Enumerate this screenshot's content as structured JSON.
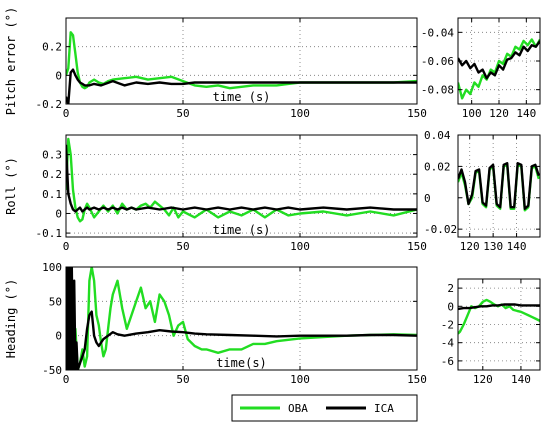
{
  "colors": {
    "OBA": "#22dd22",
    "ICA": "#000000"
  },
  "legend": {
    "entries": [
      "OBA",
      "ICA"
    ],
    "placement": "bottom-center"
  },
  "chart_data": [
    {
      "id": "pitch-main",
      "type": "line",
      "xlabel": "time (s)",
      "ylabel": "Pitch error (°)",
      "xlim": [
        0,
        150
      ],
      "ylim": [
        -0.2,
        0.4
      ],
      "xticks": [
        0,
        50,
        100,
        150
      ],
      "xtick_labels": [
        "0",
        "50",
        "100",
        "150"
      ],
      "yticks": [
        0.2,
        0,
        -0.2
      ],
      "ytick_labels": [
        "0.2",
        "0",
        "-0.2"
      ],
      "grid": true,
      "ytick_side": "left",
      "series": [
        {
          "name": "OBA",
          "x": [
            0,
            1,
            2,
            3,
            4,
            5,
            6,
            7,
            8,
            9,
            10,
            12,
            14,
            16,
            18,
            20,
            25,
            30,
            35,
            40,
            45,
            50,
            55,
            60,
            65,
            70,
            75,
            80,
            85,
            90,
            95,
            100,
            110,
            120,
            130,
            140,
            150
          ],
          "y": [
            0,
            0.05,
            0.3,
            0.28,
            0.15,
            0.02,
            -0.05,
            -0.08,
            -0.09,
            -0.08,
            -0.05,
            -0.03,
            -0.05,
            -0.06,
            -0.04,
            -0.03,
            -0.02,
            -0.01,
            -0.03,
            -0.02,
            -0.01,
            -0.04,
            -0.07,
            -0.08,
            -0.07,
            -0.09,
            -0.08,
            -0.07,
            -0.07,
            -0.07,
            -0.06,
            -0.05,
            -0.05,
            -0.05,
            -0.05,
            -0.05,
            -0.04
          ]
        },
        {
          "name": "ICA",
          "x": [
            0,
            1,
            2,
            3,
            4,
            5,
            6,
            7,
            8,
            10,
            12,
            15,
            20,
            25,
            30,
            35,
            40,
            45,
            50,
            55,
            60,
            70,
            80,
            90,
            100,
            110,
            120,
            130,
            140,
            150
          ],
          "y": [
            -0.15,
            -0.2,
            0.02,
            0.04,
            0.0,
            -0.03,
            -0.05,
            -0.06,
            -0.07,
            -0.07,
            -0.06,
            -0.07,
            -0.04,
            -0.07,
            -0.05,
            -0.06,
            -0.05,
            -0.06,
            -0.06,
            -0.05,
            -0.05,
            -0.05,
            -0.05,
            -0.05,
            -0.05,
            -0.05,
            -0.05,
            -0.05,
            -0.05,
            -0.05
          ]
        }
      ]
    },
    {
      "id": "pitch-zoom",
      "type": "line",
      "xlim": [
        90,
        150
      ],
      "ylim": [
        -0.09,
        -0.03
      ],
      "xticks": [
        100,
        120,
        140
      ],
      "xtick_labels": [
        "100",
        "120",
        "140"
      ],
      "yticks": [
        -0.04,
        -0.06,
        -0.08
      ],
      "ytick_labels": [
        "-0.04",
        "-0.06",
        "-0.08"
      ],
      "grid": true,
      "ytick_side": "left",
      "series": [
        {
          "name": "OBA",
          "x": [
            90,
            93,
            96,
            99,
            102,
            105,
            108,
            111,
            114,
            117,
            120,
            123,
            126,
            129,
            132,
            135,
            138,
            141,
            144,
            147,
            150
          ],
          "y": [
            -0.075,
            -0.086,
            -0.08,
            -0.083,
            -0.075,
            -0.078,
            -0.07,
            -0.073,
            -0.066,
            -0.068,
            -0.06,
            -0.062,
            -0.055,
            -0.057,
            -0.05,
            -0.052,
            -0.046,
            -0.049,
            -0.045,
            -0.05,
            -0.045
          ]
        },
        {
          "name": "ICA",
          "x": [
            90,
            93,
            96,
            99,
            102,
            105,
            108,
            111,
            114,
            117,
            120,
            123,
            126,
            129,
            132,
            135,
            138,
            141,
            144,
            147,
            150
          ],
          "y": [
            -0.058,
            -0.063,
            -0.06,
            -0.065,
            -0.062,
            -0.068,
            -0.066,
            -0.072,
            -0.068,
            -0.07,
            -0.063,
            -0.066,
            -0.059,
            -0.058,
            -0.054,
            -0.056,
            -0.05,
            -0.053,
            -0.049,
            -0.05,
            -0.046
          ]
        }
      ]
    },
    {
      "id": "roll-main",
      "type": "line",
      "xlabel": "time (s)",
      "ylabel": "Roll (°)",
      "xlim": [
        0,
        150
      ],
      "ylim": [
        -0.12,
        0.4
      ],
      "xticks": [
        0,
        50,
        100,
        150
      ],
      "xtick_labels": [
        "0",
        "50",
        "100",
        "150"
      ],
      "yticks": [
        0.3,
        0.2,
        0.1,
        0,
        -0.1
      ],
      "ytick_labels": [
        "0.3",
        "0.2",
        "0.1",
        "0",
        "-0.1"
      ],
      "grid": true,
      "ytick_side": "left",
      "series": [
        {
          "name": "OBA",
          "x": [
            0,
            1,
            2,
            3,
            4,
            5,
            6,
            7,
            8,
            9,
            10,
            12,
            14,
            16,
            18,
            20,
            22,
            24,
            26,
            28,
            30,
            32,
            34,
            36,
            38,
            40,
            42,
            44,
            46,
            48,
            50,
            55,
            60,
            65,
            70,
            75,
            80,
            85,
            90,
            95,
            100,
            110,
            120,
            130,
            140,
            150
          ],
          "y": [
            0.12,
            0.38,
            0.3,
            0.12,
            0.03,
            -0.02,
            -0.04,
            -0.03,
            0.02,
            0.05,
            0.03,
            -0.02,
            0.01,
            0.04,
            0.01,
            0.04,
            0.0,
            0.05,
            0.02,
            0.03,
            0.02,
            0.04,
            0.05,
            0.03,
            0.06,
            0.04,
            0.02,
            -0.01,
            0.03,
            -0.02,
            0.01,
            -0.02,
            0.02,
            -0.02,
            0.01,
            -0.01,
            0.02,
            -0.02,
            0.02,
            -0.01,
            0.0,
            0.01,
            -0.01,
            0.01,
            -0.01,
            0.02
          ]
        },
        {
          "name": "ICA",
          "x": [
            0,
            1,
            2,
            3,
            4,
            5,
            6,
            7,
            8,
            9,
            10,
            12,
            14,
            16,
            18,
            20,
            22,
            24,
            26,
            28,
            30,
            35,
            40,
            45,
            50,
            55,
            60,
            65,
            70,
            75,
            80,
            85,
            90,
            95,
            100,
            110,
            120,
            130,
            140,
            150
          ],
          "y": [
            0.35,
            0.1,
            0.05,
            0.02,
            0.01,
            0.02,
            0.03,
            0.01,
            0.02,
            0.03,
            0.02,
            0.03,
            0.02,
            0.03,
            0.02,
            0.03,
            0.02,
            0.03,
            0.02,
            0.03,
            0.02,
            0.03,
            0.02,
            0.03,
            0.02,
            0.03,
            0.02,
            0.03,
            0.02,
            0.03,
            0.02,
            0.03,
            0.02,
            0.03,
            0.02,
            0.03,
            0.02,
            0.03,
            0.02,
            0.02
          ]
        }
      ]
    },
    {
      "id": "roll-zoom",
      "type": "line",
      "xlim": [
        115,
        150
      ],
      "ylim": [
        -0.025,
        0.04
      ],
      "xticks": [
        120,
        130,
        140
      ],
      "xtick_labels": [
        "120",
        "130",
        "140"
      ],
      "yticks": [
        0.04,
        0.02,
        0,
        -0.02
      ],
      "ytick_labels": [
        "0.04",
        "0.02",
        "0",
        "-0.02"
      ],
      "grid": true,
      "ytick_side": "right",
      "series": [
        {
          "name": "OBA",
          "x": [
            115,
            116.5,
            118,
            119.5,
            121,
            122.5,
            124,
            125.5,
            127,
            128.5,
            130,
            131.5,
            133,
            134.5,
            136,
            137.5,
            139,
            140.5,
            142,
            143.5,
            145,
            146.5,
            148,
            149.5
          ],
          "y": [
            0.01,
            0.016,
            0.008,
            -0.004,
            0.0,
            0.016,
            0.017,
            -0.004,
            -0.006,
            0.018,
            0.02,
            -0.005,
            -0.007,
            0.02,
            0.021,
            -0.007,
            -0.007,
            0.021,
            0.02,
            -0.008,
            -0.006,
            0.019,
            0.02,
            0.012
          ]
        },
        {
          "name": "ICA",
          "x": [
            115,
            116.5,
            118,
            119.5,
            121,
            122.5,
            124,
            125.5,
            127,
            128.5,
            130,
            131.5,
            133,
            134.5,
            136,
            137.5,
            139,
            140.5,
            142,
            143.5,
            145,
            146.5,
            148,
            149.5
          ],
          "y": [
            0.012,
            0.018,
            0.01,
            -0.004,
            0.002,
            0.017,
            0.018,
            -0.003,
            -0.005,
            0.019,
            0.021,
            -0.004,
            -0.006,
            0.021,
            0.022,
            -0.006,
            -0.006,
            0.022,
            0.021,
            -0.007,
            -0.005,
            0.02,
            0.021,
            0.014
          ]
        }
      ]
    },
    {
      "id": "heading-main",
      "type": "line",
      "xlabel": "time(s)",
      "ylabel": "Heading (°)",
      "xlim": [
        0,
        150
      ],
      "ylim": [
        -50,
        100
      ],
      "xticks": [
        0,
        50,
        100,
        150
      ],
      "xtick_labels": [
        "0",
        "50",
        "100",
        "150"
      ],
      "yticks": [
        100,
        50,
        0,
        -50
      ],
      "ytick_labels": [
        "100",
        "50",
        "0",
        "-50"
      ],
      "grid": true,
      "ytick_side": "left",
      "series": [
        {
          "name": "OBA",
          "x": [
            0,
            0.5,
            1,
            1.5,
            2,
            2.5,
            3,
            3.5,
            4,
            5,
            6,
            7,
            8,
            9,
            10,
            11,
            12,
            13,
            14,
            15,
            16,
            17,
            18,
            19,
            20,
            22,
            24,
            26,
            28,
            30,
            32,
            34,
            36,
            38,
            40,
            42,
            44,
            46,
            48,
            50,
            52,
            55,
            58,
            60,
            65,
            70,
            75,
            80,
            85,
            90,
            95,
            100,
            110,
            120,
            130,
            140,
            150
          ],
          "y": [
            100,
            -50,
            100,
            -50,
            100,
            -50,
            -50,
            -20,
            10,
            -50,
            -40,
            -20,
            -45,
            -30,
            80,
            100,
            80,
            30,
            15,
            -10,
            -30,
            -20,
            10,
            40,
            60,
            80,
            40,
            10,
            30,
            50,
            70,
            40,
            50,
            20,
            60,
            50,
            30,
            0,
            15,
            20,
            -5,
            -15,
            -20,
            -20,
            -25,
            -20,
            -20,
            -12,
            -12,
            -8,
            -6,
            -4,
            -2,
            0,
            1,
            2,
            1
          ]
        },
        {
          "name": "ICA",
          "x": [
            0,
            0.5,
            1,
            1.5,
            2,
            2.5,
            3,
            3.5,
            4,
            4.5,
            5,
            6,
            7,
            8,
            9,
            10,
            11,
            12,
            13,
            14,
            16,
            18,
            20,
            22,
            25,
            30,
            35,
            40,
            45,
            50,
            55,
            60,
            70,
            80,
            90,
            100,
            110,
            120,
            130,
            140,
            150
          ],
          "y": [
            -50,
            100,
            -50,
            100,
            -50,
            100,
            -50,
            80,
            -50,
            -10,
            -50,
            -40,
            -30,
            -20,
            10,
            30,
            35,
            0,
            -10,
            -15,
            -5,
            0,
            5,
            2,
            0,
            3,
            5,
            8,
            6,
            5,
            3,
            2,
            1,
            0,
            -1,
            0,
            0,
            0,
            1,
            1,
            0
          ]
        }
      ]
    },
    {
      "id": "heading-zoom",
      "type": "line",
      "xlim": [
        107,
        150
      ],
      "ylim": [
        -7,
        3
      ],
      "xticks": [
        120,
        140
      ],
      "xtick_labels": [
        "120",
        "140"
      ],
      "yticks": [
        2,
        0,
        -2,
        -4,
        -6
      ],
      "ytick_labels": [
        "2",
        "0",
        "-2",
        "-4",
        "-6"
      ],
      "grid": true,
      "ytick_side": "left",
      "series": [
        {
          "name": "OBA",
          "x": [
            107,
            108,
            110,
            112,
            114,
            116,
            118,
            120,
            122,
            124,
            126,
            128,
            130,
            132,
            134,
            136,
            138,
            140,
            142,
            144,
            146,
            148,
            150
          ],
          "y": [
            -3,
            -2.8,
            -2,
            -1,
            0,
            -0.2,
            0,
            0.5,
            0.7,
            0.5,
            0.2,
            0,
            0.2,
            -0.2,
            0,
            -0.4,
            -0.5,
            -0.6,
            -0.8,
            -1,
            -1.2,
            -1.4,
            -1.6
          ]
        },
        {
          "name": "ICA",
          "x": [
            107,
            110,
            113,
            116,
            119,
            122,
            125,
            128,
            131,
            134,
            137,
            140,
            143,
            146,
            150
          ],
          "y": [
            -0.3,
            -0.2,
            -0.2,
            -0.1,
            0,
            0,
            0.1,
            0.1,
            0.2,
            0.2,
            0.2,
            0.1,
            0.1,
            0.1,
            0.1
          ]
        }
      ]
    }
  ]
}
